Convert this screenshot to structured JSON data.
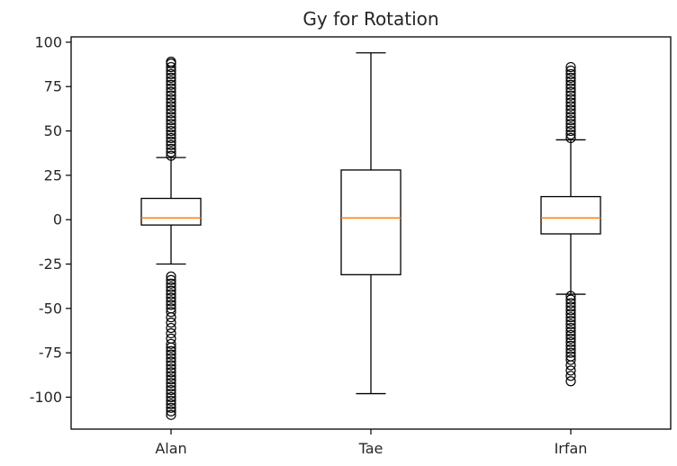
{
  "chart_data": {
    "type": "boxplot",
    "title": "Gy for Rotation",
    "xlabel": "",
    "ylabel": "",
    "ylim": [
      -118,
      103
    ],
    "yticks": [
      100,
      75,
      50,
      25,
      0,
      -25,
      -50,
      -75,
      -100
    ],
    "categories": [
      "Alan",
      "Tae",
      "Irfan"
    ],
    "series": [
      {
        "category": "Alan",
        "whisker_low": -25,
        "q1": -3,
        "median": 1,
        "q3": 12,
        "whisker_high": 35,
        "outliers": [
          36,
          38,
          40,
          42,
          44,
          46,
          48,
          50,
          52,
          54,
          56,
          58,
          60,
          62,
          64,
          66,
          68,
          70,
          72,
          74,
          76,
          78,
          80,
          82,
          84,
          86,
          88,
          89,
          -32,
          -34,
          -36,
          -38,
          -40,
          -42,
          -44,
          -46,
          -48,
          -50,
          -52,
          -55,
          -58,
          -61,
          -64,
          -67,
          -70,
          -72,
          -74,
          -76,
          -78,
          -80,
          -82,
          -84,
          -86,
          -88,
          -90,
          -92,
          -94,
          -96,
          -98,
          -100,
          -102,
          -104,
          -106,
          -108,
          -110
        ]
      },
      {
        "category": "Tae",
        "whisker_low": -98,
        "q1": -31,
        "median": 1,
        "q3": 28,
        "whisker_high": 94,
        "outliers": []
      },
      {
        "category": "Irfan",
        "whisker_low": -42,
        "q1": -8,
        "median": 1,
        "q3": 13,
        "whisker_high": 45,
        "outliers": [
          46,
          48,
          50,
          52,
          54,
          56,
          58,
          60,
          62,
          64,
          66,
          68,
          70,
          72,
          74,
          76,
          78,
          80,
          82,
          84,
          86,
          -43,
          -45,
          -47,
          -49,
          -51,
          -53,
          -55,
          -57,
          -59,
          -61,
          -63,
          -65,
          -67,
          -69,
          -71,
          -73,
          -75,
          -77,
          -79,
          -82,
          -85,
          -88,
          -91
        ]
      }
    ],
    "box_color": "#000000",
    "median_color": "#ff7f0e",
    "grid": false
  }
}
